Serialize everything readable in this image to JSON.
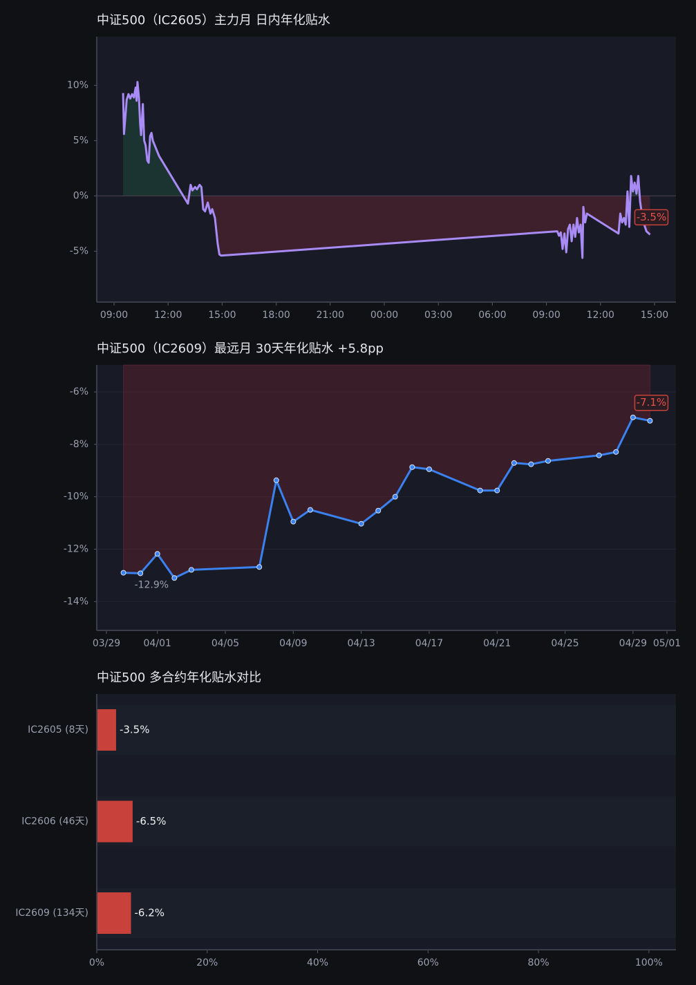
{
  "chart_data": [
    {
      "type": "line",
      "title": "中证500（IC2605）主力月 日内年化贴水",
      "color": "#a98bf5",
      "x": [
        9.5,
        9.55,
        9.62,
        9.7,
        9.8,
        9.9,
        10.0,
        10.1,
        10.2,
        10.25,
        10.3,
        10.38,
        10.45,
        10.5,
        10.6,
        10.67,
        10.75,
        10.85,
        10.92,
        11.0,
        11.08,
        11.15,
        11.5,
        13.1,
        13.25,
        13.35,
        13.5,
        13.6,
        13.75,
        13.85,
        13.95,
        14.05,
        14.2,
        14.35,
        14.45,
        14.6,
        14.75,
        14.85,
        14.95,
        33.6,
        33.7,
        33.8,
        33.9,
        34.0,
        34.1,
        34.2,
        34.3,
        34.4,
        34.5,
        34.6,
        34.7,
        34.8,
        34.9,
        35.0,
        35.05,
        35.15,
        35.25,
        37.0,
        37.1,
        37.2,
        37.3,
        37.4,
        37.5,
        37.6,
        37.7,
        37.8,
        37.9,
        38.0,
        38.1,
        38.2,
        38.35,
        38.55,
        38.75
      ],
      "values": [
        9.3,
        5.6,
        7.0,
        8.7,
        9.2,
        8.8,
        9.2,
        8.9,
        9.8,
        8.6,
        10.3,
        8.9,
        6.5,
        5.5,
        8.3,
        5.0,
        4.6,
        3.2,
        3.0,
        5.4,
        5.7,
        5.0,
        3.6,
        -0.7,
        1.0,
        0.5,
        0.8,
        0.6,
        1.0,
        0.8,
        -1.2,
        -1.4,
        -0.6,
        -1.6,
        -1.2,
        -2.0,
        -4.3,
        -5.3,
        -5.4,
        -3.2,
        -3.6,
        -3.3,
        -4.8,
        -3.4,
        -5.1,
        -3.0,
        -2.6,
        -4.1,
        -2.6,
        -3.7,
        -2.0,
        -3.3,
        -2.6,
        -5.6,
        -1.0,
        -2.4,
        -1.6,
        -3.4,
        -1.6,
        -2.4,
        -2.0,
        -2.6,
        0.4,
        -2.8,
        1.8,
        0.4,
        1.2,
        0.2,
        1.8,
        -0.5,
        -2.2,
        -3.2,
        -3.5
      ],
      "end_label": "-3.5%",
      "xlim": [
        8.04,
        40.19
      ],
      "xticks": [
        {
          "value": 9,
          "label": "09:00"
        },
        {
          "value": 12,
          "label": "12:00"
        },
        {
          "value": 15,
          "label": "15:00"
        },
        {
          "value": 18,
          "label": "18:00"
        },
        {
          "value": 21,
          "label": "21:00"
        },
        {
          "value": 24,
          "label": "00:00"
        },
        {
          "value": 27,
          "label": "03:00"
        },
        {
          "value": 30,
          "label": "06:00"
        },
        {
          "value": 33,
          "label": "09:00"
        },
        {
          "value": 36,
          "label": "12:00"
        },
        {
          "value": 39,
          "label": "15:00"
        }
      ],
      "ylim": [
        -9.6,
        14.4
      ],
      "yticks": [
        {
          "value": 10,
          "label": "10%"
        },
        {
          "value": 5,
          "label": "5%"
        },
        {
          "value": 0,
          "label": "0%"
        },
        {
          "value": -5,
          "label": "-5%"
        }
      ],
      "zero_line": true,
      "grid": false
    },
    {
      "type": "line",
      "title": "中证500（IC2609）最远月 30天年化贴水   +5.8pp",
      "color": "#3b82f0",
      "markers": true,
      "x": [
        "03/30",
        "03/31",
        "04/01",
        "04/02",
        "04/03",
        "04/07",
        "04/08",
        "04/09",
        "04/10",
        "04/13",
        "04/14",
        "04/15",
        "04/16",
        "04/17",
        "04/20",
        "04/21",
        "04/22",
        "04/23",
        "04/24",
        "04/27",
        "04/28",
        "04/29",
        "04/30"
      ],
      "values": [
        -12.9,
        -12.92,
        -12.18,
        -13.1,
        -12.79,
        -12.68,
        -9.37,
        -10.95,
        -10.5,
        -11.03,
        -10.53,
        -10.0,
        -8.87,
        -8.95,
        -9.76,
        -9.76,
        -8.71,
        -8.76,
        -8.63,
        -8.42,
        -8.29,
        -6.97,
        -7.1
      ],
      "start_label": "-12.9%",
      "end_label": "-7.1%",
      "xlim": [
        "03/29",
        "05/01"
      ],
      "xticks": [
        "03/29",
        "04/01",
        "04/05",
        "04/09",
        "04/13",
        "04/17",
        "04/21",
        "04/25",
        "04/29",
        "05/01"
      ],
      "ylim": [
        -15.1,
        -4.97
      ],
      "yticks": [
        {
          "value": -6,
          "label": "-6%"
        },
        {
          "value": -8,
          "label": "-8%"
        },
        {
          "value": -10,
          "label": "-10%"
        },
        {
          "value": -12,
          "label": "-12%"
        },
        {
          "value": -14,
          "label": "-14%"
        }
      ],
      "grid": true
    },
    {
      "type": "bar",
      "orientation": "horizontal",
      "title": "中证500 多合约年化贴水对比",
      "color": "#c8413a",
      "categories": [
        "IC2605 (8天)",
        "IC2606 (46天)",
        "IC2609 (134天)"
      ],
      "values": [
        -3.5,
        -6.5,
        -6.2
      ],
      "value_labels": [
        "-3.5%",
        "-6.5%",
        "-6.2%"
      ],
      "xlim": [
        0,
        -104.9
      ],
      "xticks": [
        {
          "value": 0,
          "label": "0%"
        },
        {
          "value": -20,
          "label": "20%"
        },
        {
          "value": -40,
          "label": "40%"
        },
        {
          "value": -60,
          "label": "60%"
        },
        {
          "value": -80,
          "label": "80%"
        },
        {
          "value": -100,
          "label": "100%"
        }
      ]
    }
  ]
}
